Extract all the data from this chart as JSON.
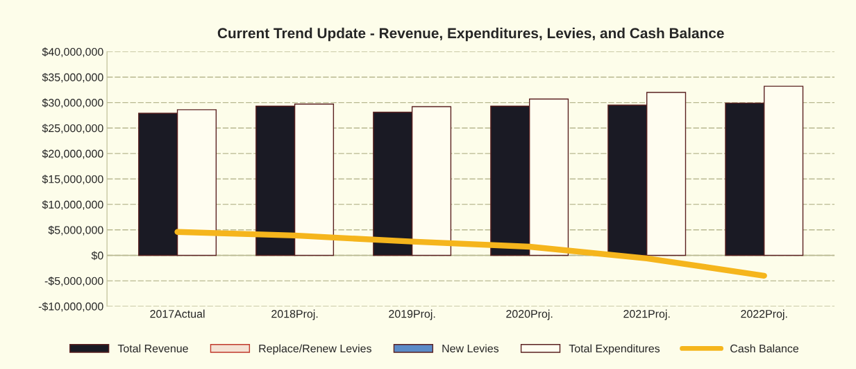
{
  "chart_data": {
    "type": "bar",
    "title": "Current Trend Update - Revenue, Expenditures, Levies, and Cash Balance",
    "categories": [
      "2017Actual",
      "2018Proj.",
      "2019Proj.",
      "2020Proj.",
      "2021Proj.",
      "2022Proj."
    ],
    "series": [
      {
        "name": "Total Revenue",
        "color": "#1a1a24",
        "values": [
          27900000,
          29300000,
          28100000,
          29300000,
          29500000,
          29900000
        ]
      },
      {
        "name": "Replace/Renew Levies",
        "color": "#f4e2d4",
        "values": [
          null,
          null,
          null,
          null,
          null,
          null
        ]
      },
      {
        "name": "New Levies",
        "color": "#5b8bc8",
        "values": [
          null,
          null,
          null,
          null,
          null,
          null
        ]
      },
      {
        "name": "Total Expenditures",
        "color": "#fffdf0",
        "values": [
          28600000,
          29700000,
          29200000,
          30700000,
          32000000,
          33200000
        ]
      },
      {
        "name": "Cash Balance",
        "type": "line",
        "color": "#f5b51c",
        "values": [
          4600000,
          3900000,
          2700000,
          1700000,
          -600000,
          -4000000
        ]
      }
    ],
    "ylim": [
      -10000000,
      40000000
    ],
    "yticks": [
      {
        "value": -10000000,
        "label": "-$10,000,000"
      },
      {
        "value": -5000000,
        "label": "-$5,000,000"
      },
      {
        "value": 0,
        "label": "$0"
      },
      {
        "value": 5000000,
        "label": "$5,000,000"
      },
      {
        "value": 10000000,
        "label": "$10,000,000"
      },
      {
        "value": 15000000,
        "label": "$15,000,000"
      },
      {
        "value": 20000000,
        "label": "$20,000,000"
      },
      {
        "value": 25000000,
        "label": "$25,000,000"
      },
      {
        "value": 30000000,
        "label": "$30,000,000"
      },
      {
        "value": 35000000,
        "label": "$35,000,000"
      },
      {
        "value": 40000000,
        "label": "$40,000,000"
      }
    ],
    "grid": "y",
    "legend": "bottom"
  }
}
